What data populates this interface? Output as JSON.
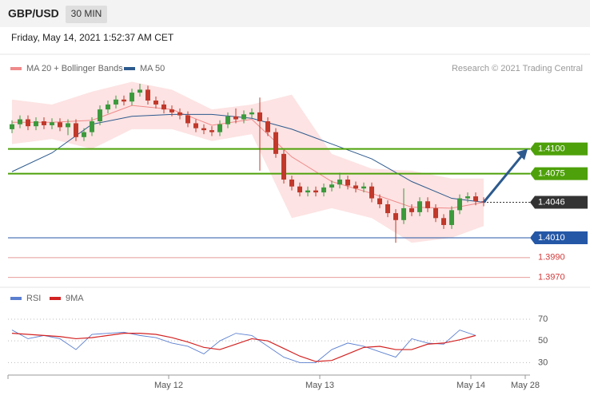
{
  "header": {
    "symbol": "GBP/USD",
    "interval": "30 MIN",
    "timestamp": "Friday, May 14, 2021 1:52:37 AM CET"
  },
  "chart_data": [
    {
      "type": "candlestick",
      "credit": "Research © 2021 Trading Central",
      "up_color": "#3c9a3c",
      "down_color": "#c0392b",
      "open": [
        1.412,
        1.4125,
        1.413,
        1.4123,
        1.4128,
        1.4124,
        1.4127,
        1.4122,
        1.4126,
        1.4112,
        1.4117,
        1.4128,
        1.414,
        1.4145,
        1.415,
        1.4148,
        1.4157,
        1.416,
        1.4149,
        1.4145,
        1.414,
        1.4137,
        1.4134,
        1.4126,
        1.4121,
        1.4119,
        1.4117,
        1.4125,
        1.4133,
        1.413,
        1.4135,
        1.4137,
        1.4128,
        1.4117,
        1.4095,
        1.4069,
        1.4062,
        1.4056,
        1.4058,
        1.4056,
        1.4061,
        1.4064,
        1.4069,
        1.4063,
        1.406,
        1.4062,
        1.405,
        1.4044,
        1.4035,
        1.4028,
        1.404,
        1.4036,
        1.4047,
        1.404,
        1.403,
        1.4023,
        1.4038,
        1.405,
        1.4052,
        1.4047
      ],
      "high": [
        1.4129,
        1.4134,
        1.4134,
        1.4132,
        1.4132,
        1.4131,
        1.4131,
        1.413,
        1.413,
        1.4121,
        1.4132,
        1.4144,
        1.4149,
        1.4154,
        1.4154,
        1.4161,
        1.4166,
        1.4164,
        1.4153,
        1.4149,
        1.4144,
        1.4141,
        1.4138,
        1.413,
        1.4125,
        1.4123,
        1.4129,
        1.4137,
        1.4141,
        1.4139,
        1.4141,
        1.4152,
        1.4132,
        1.4121,
        1.4099,
        1.4073,
        1.4066,
        1.4062,
        1.4062,
        1.4065,
        1.4068,
        1.4076,
        1.4073,
        1.4067,
        1.4066,
        1.4066,
        1.4054,
        1.4048,
        1.4039,
        1.406,
        1.4044,
        1.4051,
        1.4051,
        1.4044,
        1.4034,
        1.4042,
        1.4054,
        1.4056,
        1.4056,
        1.4051
      ],
      "low": [
        1.4116,
        1.4121,
        1.4119,
        1.4119,
        1.412,
        1.412,
        1.4118,
        1.4114,
        1.4108,
        1.4108,
        1.4113,
        1.4124,
        1.4136,
        1.4141,
        1.4144,
        1.4144,
        1.4153,
        1.4145,
        1.4141,
        1.4136,
        1.4133,
        1.413,
        1.4122,
        1.4117,
        1.4115,
        1.4113,
        1.4113,
        1.4121,
        1.4126,
        1.4126,
        1.4131,
        1.4078,
        1.4113,
        1.4091,
        1.4065,
        1.4058,
        1.4052,
        1.4052,
        1.4052,
        1.4052,
        1.4057,
        1.406,
        1.4059,
        1.4056,
        1.4056,
        1.4046,
        1.404,
        1.4031,
        1.4005,
        1.4024,
        1.4032,
        1.4032,
        1.4036,
        1.4026,
        1.4019,
        1.4019,
        1.4034,
        1.4046,
        1.4043,
        1.4042
      ],
      "close": [
        1.4125,
        1.413,
        1.4123,
        1.4128,
        1.4124,
        1.4127,
        1.4122,
        1.4126,
        1.4112,
        1.4117,
        1.4128,
        1.414,
        1.4145,
        1.415,
        1.4148,
        1.4157,
        1.416,
        1.4149,
        1.4145,
        1.414,
        1.4137,
        1.4134,
        1.4126,
        1.4121,
        1.4119,
        1.4117,
        1.4125,
        1.4133,
        1.413,
        1.4135,
        1.4137,
        1.4128,
        1.4117,
        1.4095,
        1.4069,
        1.4062,
        1.4056,
        1.4058,
        1.4056,
        1.4061,
        1.4064,
        1.4069,
        1.4063,
        1.406,
        1.4062,
        1.405,
        1.4044,
        1.4035,
        1.4028,
        1.404,
        1.4036,
        1.4047,
        1.404,
        1.403,
        1.4023,
        1.4038,
        1.405,
        1.4052,
        1.4047,
        1.4046
      ],
      "bands": {
        "name": "MA 20 + Bollinger Bands",
        "color": "#f08a8a",
        "fill": "#fde3e3",
        "x": [
          0,
          5,
          10,
          15,
          20,
          25,
          30,
          35,
          40,
          45,
          50,
          55,
          59
        ],
        "upper": [
          1.415,
          1.4145,
          1.4158,
          1.4168,
          1.416,
          1.414,
          1.4145,
          1.4155,
          1.4095,
          1.408,
          1.4078,
          1.407,
          1.407
        ],
        "middle": [
          1.4127,
          1.4127,
          1.4129,
          1.4144,
          1.414,
          1.4124,
          1.413,
          1.4092,
          1.4067,
          1.4055,
          1.4041,
          1.404,
          1.4046
        ],
        "lower": [
          1.4105,
          1.411,
          1.41,
          1.412,
          1.412,
          1.4108,
          1.4115,
          1.403,
          1.404,
          1.403,
          1.4005,
          1.401,
          1.4022
        ]
      },
      "ma": {
        "name": "MA 50",
        "color": "#2d5a8e",
        "x": [
          0,
          5,
          10,
          15,
          20,
          25,
          30,
          35,
          40,
          45,
          50,
          55,
          59
        ],
        "values": [
          1.4077,
          1.4096,
          1.4125,
          1.4133,
          1.4135,
          1.4135,
          1.4131,
          1.412,
          1.4105,
          1.409,
          1.4067,
          1.405,
          1.4046
        ]
      },
      "levels": [
        {
          "value": 1.41,
          "label": "1.4100",
          "color": "#4ea10a",
          "boxed": true
        },
        {
          "value": 1.4075,
          "label": "1.4075",
          "color": "#4ea10a",
          "boxed": true
        },
        {
          "value": 1.4046,
          "label": "1.4046",
          "color": "#333333",
          "boxed": true,
          "current": true
        },
        {
          "value": 1.401,
          "label": "1.4010",
          "color": "#2457a6",
          "boxed": true
        },
        {
          "value": 1.399,
          "label": "1.3990",
          "color": "#d23a3a",
          "boxed": false
        },
        {
          "value": 1.397,
          "label": "1.3970",
          "color": "#d23a3a",
          "boxed": false
        }
      ],
      "arrow_color": "#2d5a8e",
      "xlim": [
        -0.5,
        65
      ],
      "ylim": [
        1.3964,
        1.417
      ]
    },
    {
      "type": "line",
      "x": [
        0,
        2,
        4,
        6,
        8,
        10,
        12,
        14,
        16,
        18,
        20,
        22,
        24,
        26,
        28,
        30,
        32,
        34,
        36,
        38,
        40,
        42,
        44,
        46,
        48,
        50,
        52,
        54,
        56,
        58
      ],
      "series": [
        {
          "name": "RSI",
          "color": "#5b7fd0",
          "values": [
            60,
            52,
            55,
            52,
            42,
            56,
            57,
            58,
            55,
            53,
            48,
            45,
            38,
            50,
            57,
            55,
            45,
            35,
            30,
            30,
            42,
            48,
            45,
            40,
            35,
            52,
            48,
            47,
            60,
            55
          ]
        },
        {
          "name": "9MA",
          "color": "#d32222",
          "values": [
            57,
            56,
            55,
            54,
            52,
            53,
            55,
            57,
            57,
            56,
            53,
            49,
            44,
            42,
            47,
            52,
            50,
            43,
            36,
            31,
            32,
            38,
            44,
            45,
            42,
            42,
            47,
            48,
            51,
            55
          ]
        }
      ],
      "xlim": [
        -0.5,
        65
      ],
      "ylim": [
        20,
        81
      ],
      "yticks": [
        70,
        50,
        30
      ],
      "xticks": [
        {
          "value": 19.6,
          "label": "May 12"
        },
        {
          "value": 38.5,
          "label": "May 13"
        },
        {
          "value": 57.4,
          "label": "May 14"
        },
        {
          "value": 64.2,
          "label": "May 28"
        }
      ]
    }
  ]
}
